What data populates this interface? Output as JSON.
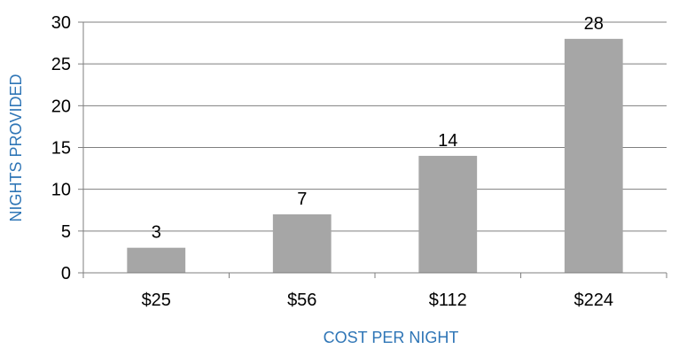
{
  "chart_data": {
    "type": "bar",
    "categories": [
      "$25",
      "$56",
      "$112",
      "$224"
    ],
    "values": [
      3,
      7,
      14,
      28
    ],
    "data_labels": [
      "3",
      "7",
      "14",
      "28"
    ],
    "title": "",
    "xlabel": "COST PER NIGHT",
    "ylabel": "NIGHTS PROVIDED",
    "ylim": [
      0,
      30
    ],
    "yticks": [
      0,
      5,
      10,
      15,
      20,
      25,
      30
    ],
    "grid": true,
    "legend": "none",
    "colors": {
      "bar": "#a6a6a6",
      "axis_title": "#2e75b6",
      "grid": "#7f7f7f",
      "axis": "#7f7f7f"
    }
  }
}
